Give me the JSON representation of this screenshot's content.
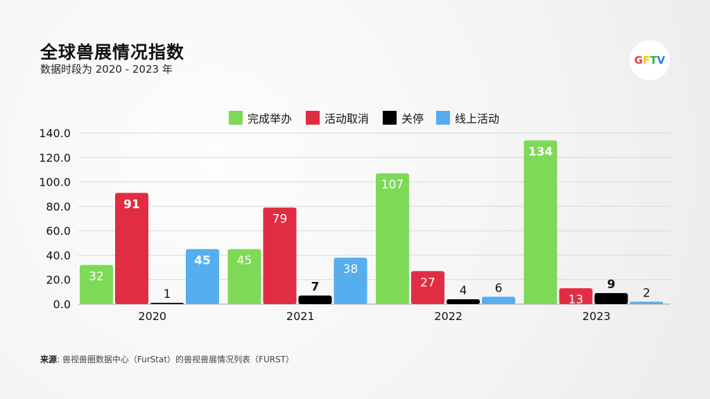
{
  "title": "全球兽展情况指数",
  "subtitle": "数据时段为 2020 - 2023 年",
  "logo": {
    "text": "GFTV",
    "letters": [
      {
        "ch": "G",
        "color": "#e53935"
      },
      {
        "ch": "F",
        "color": "#f5c400"
      },
      {
        "ch": "T",
        "color": "#2eb84b"
      },
      {
        "ch": "V",
        "color": "#2a7de1"
      }
    ]
  },
  "source": {
    "label": "来源",
    "text": ": 兽视兽圈数据中心（FurStat）的兽视兽展情况列表（FURST）"
  },
  "chart_data": {
    "type": "bar",
    "categories": [
      "2020",
      "2021",
      "2022",
      "2023"
    ],
    "series": [
      {
        "name": "完成举办",
        "color": "#7ed957",
        "values": [
          32,
          45,
          107,
          134
        ],
        "bold": [
          false,
          false,
          false,
          true
        ]
      },
      {
        "name": "活动取消",
        "color": "#e02d42",
        "values": [
          91,
          79,
          27,
          13
        ],
        "bold": [
          true,
          false,
          false,
          false
        ]
      },
      {
        "name": "关停",
        "color": "#000000",
        "values": [
          1,
          7,
          4,
          9
        ],
        "bold": [
          false,
          true,
          false,
          true
        ]
      },
      {
        "name": "线上活动",
        "color": "#55aeee",
        "values": [
          45,
          38,
          6,
          2
        ],
        "bold": [
          true,
          false,
          false,
          false
        ]
      }
    ],
    "yticks": [
      "0.0",
      "20.0",
      "40.0",
      "60.0",
      "80.0",
      "100.0",
      "120.0",
      "140.0"
    ],
    "ylim": [
      0,
      140
    ],
    "grid": true,
    "legend": "top-center"
  }
}
